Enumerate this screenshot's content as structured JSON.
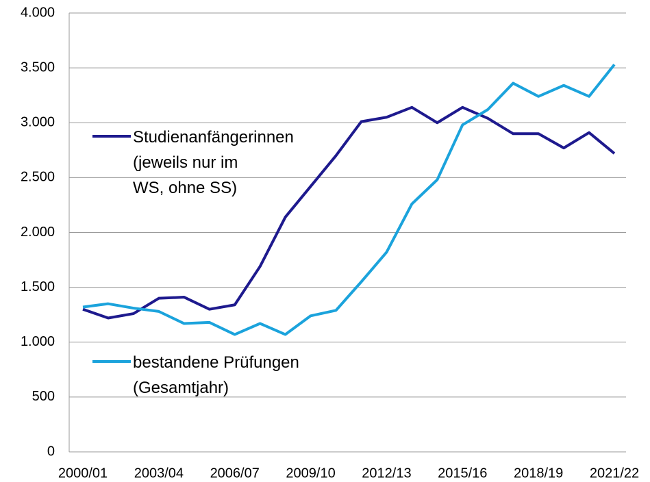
{
  "chart_data": {
    "type": "line",
    "categories": [
      "2000/01",
      null,
      null,
      "2003/04",
      null,
      null,
      "2006/07",
      null,
      null,
      "2009/10",
      null,
      null,
      "2012/13",
      null,
      null,
      "2015/16",
      null,
      null,
      "2018/19",
      null,
      null,
      "2021/22"
    ],
    "series": [
      {
        "name": "Studienanfängerinnen\n(jeweils nur im\nWS, ohne SS)",
        "color": "#1e1a8e",
        "values": [
          1300,
          1220,
          1260,
          1400,
          1410,
          1300,
          1340,
          1690,
          2140,
          2420,
          2700,
          3010,
          3050,
          3140,
          3000,
          3140,
          3040,
          2900,
          2900,
          2770,
          2910,
          2720
        ]
      },
      {
        "name": "bestandene Prüfungen\n(Gesamtjahr)",
        "color": "#1ba3dc",
        "values": [
          1320,
          1350,
          1310,
          1280,
          1170,
          1180,
          1070,
          1170,
          1070,
          1240,
          1290,
          1550,
          1820,
          2260,
          2480,
          2980,
          3120,
          3360,
          3240,
          3340,
          3240,
          3530
        ]
      }
    ],
    "ylim": [
      0,
      4000
    ],
    "yticks": [
      0,
      500,
      {
        "value": 1000,
        "label": "1.000"
      },
      {
        "value": 1500,
        "label": "1.500"
      },
      {
        "value": 2000,
        "label": "2.000"
      },
      {
        "value": 2500,
        "label": "2.500"
      },
      {
        "value": 3000,
        "label": "3.000"
      },
      {
        "value": 3500,
        "label": "3.500"
      },
      {
        "value": 4000,
        "label": "4.000"
      }
    ],
    "grid": true
  }
}
